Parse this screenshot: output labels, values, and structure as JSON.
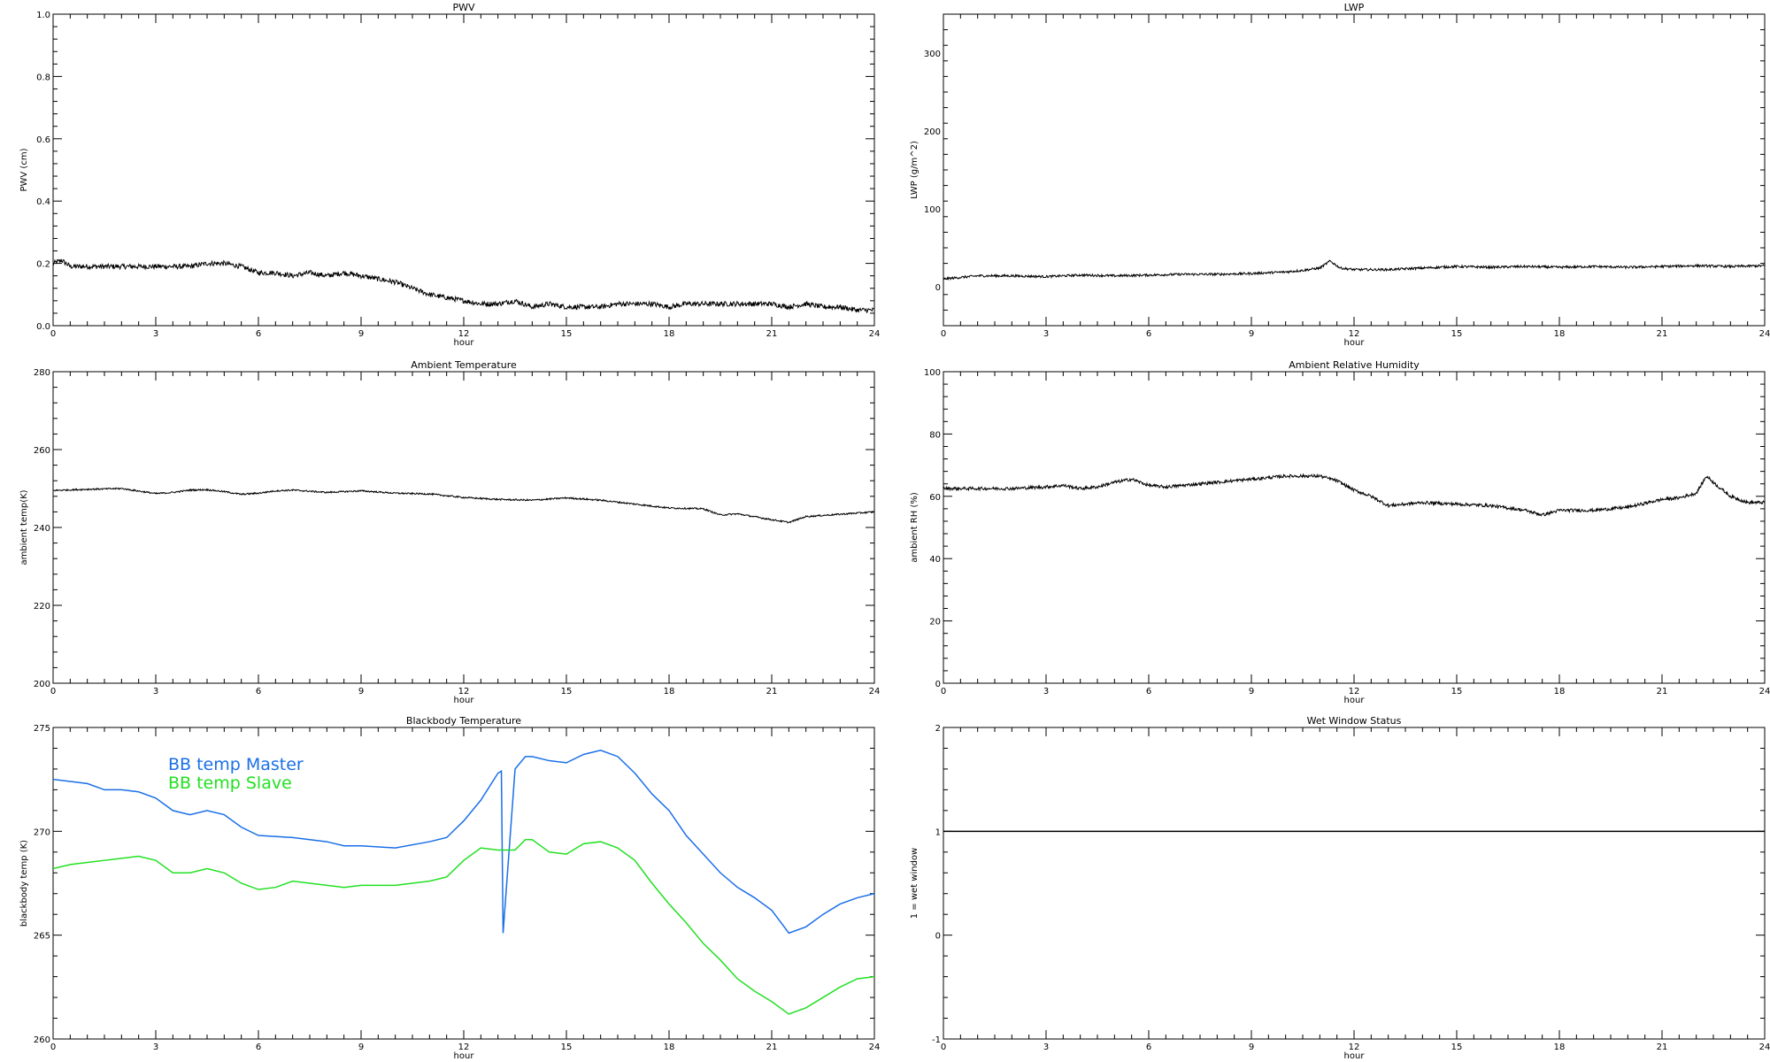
{
  "colors": {
    "axis": "#000000",
    "master": "#1a6fe8",
    "slave": "#22e022",
    "black": "#000000"
  },
  "chart_data": [
    {
      "type": "line",
      "title": "PWV",
      "xlabel": "hour",
      "ylabel": "PWV (cm)",
      "xlim": [
        0,
        24
      ],
      "ylim": [
        0,
        1
      ],
      "xticks": [
        0,
        3,
        6,
        9,
        12,
        15,
        18,
        21,
        24
      ],
      "xtick_labels": [
        "0",
        "3",
        "6",
        "9",
        "12",
        "15",
        "18",
        "21",
        "24"
      ],
      "yticks": [
        0,
        0.2,
        0.4,
        0.6,
        0.8,
        1.0
      ],
      "ytick_labels": [
        "0.0",
        "0.2",
        "0.4",
        "0.6",
        "0.8",
        "1.0"
      ],
      "series": [
        {
          "x": [
            0,
            0.25,
            0.5,
            1,
            2,
            3,
            4,
            4.5,
            5,
            5.5,
            6,
            6.5,
            7,
            7.5,
            8,
            8.5,
            9,
            9.5,
            10,
            10.5,
            11,
            11.5,
            12,
            12.5,
            13,
            13.5,
            14,
            14.5,
            15,
            15.5,
            16,
            16.5,
            17,
            17.5,
            18,
            18.5,
            19,
            19.5,
            20,
            20.5,
            21,
            21.5,
            22,
            22.5,
            23,
            23.5,
            24
          ],
          "y": [
            0.2,
            0.21,
            0.19,
            0.19,
            0.19,
            0.19,
            0.19,
            0.2,
            0.2,
            0.19,
            0.17,
            0.17,
            0.16,
            0.17,
            0.16,
            0.17,
            0.16,
            0.15,
            0.14,
            0.12,
            0.1,
            0.09,
            0.08,
            0.07,
            0.07,
            0.08,
            0.06,
            0.07,
            0.06,
            0.06,
            0.06,
            0.07,
            0.07,
            0.07,
            0.06,
            0.07,
            0.07,
            0.07,
            0.07,
            0.07,
            0.07,
            0.06,
            0.07,
            0.06,
            0.06,
            0.05,
            0.05
          ],
          "noise": 0.008,
          "color": "#000000"
        }
      ]
    },
    {
      "type": "line",
      "title": "LWP",
      "xlabel": "hour",
      "ylabel": "LWP (g/m^2)",
      "xlim": [
        0,
        24
      ],
      "ylim": [
        -50,
        350
      ],
      "xticks": [
        0,
        3,
        6,
        9,
        12,
        15,
        18,
        21,
        24
      ],
      "xtick_labels": [
        "0",
        "3",
        "6",
        "9",
        "12",
        "15",
        "18",
        "21",
        "24"
      ],
      "yticks": [
        0,
        100,
        200,
        300
      ],
      "ytick_labels": [
        "0",
        "100",
        "200",
        "300"
      ],
      "series": [
        {
          "x": [
            0,
            1,
            2,
            3,
            4,
            5,
            6,
            7,
            8,
            9,
            10,
            10.5,
            11,
            11.3,
            11.6,
            12,
            13,
            14,
            15,
            16,
            17,
            18,
            19,
            20,
            21,
            22,
            23,
            24
          ],
          "y": [
            10,
            14,
            14,
            13,
            15,
            14,
            15,
            16,
            16,
            17,
            19,
            21,
            24,
            33,
            24,
            22,
            22,
            24,
            26,
            25,
            26,
            25,
            26,
            25,
            26,
            27,
            26,
            27
          ],
          "noise": 1.5,
          "color": "#000000"
        }
      ]
    },
    {
      "type": "line",
      "title": "Ambient Temperature",
      "xlabel": "hour",
      "ylabel": "ambient temp(K)",
      "xlim": [
        0,
        24
      ],
      "ylim": [
        200,
        280
      ],
      "xticks": [
        0,
        3,
        6,
        9,
        12,
        15,
        18,
        21,
        24
      ],
      "xtick_labels": [
        "0",
        "3",
        "6",
        "9",
        "12",
        "15",
        "18",
        "21",
        "24"
      ],
      "yticks": [
        200,
        220,
        240,
        260,
        280
      ],
      "ytick_labels": [
        "200",
        "220",
        "240",
        "260",
        "280"
      ],
      "series": [
        {
          "x": [
            0,
            1,
            2,
            3,
            3.5,
            4,
            4.5,
            5,
            5.5,
            6,
            6.5,
            7,
            8,
            9,
            10,
            11,
            12,
            13,
            14,
            15,
            16,
            17,
            18,
            19,
            19.5,
            20,
            21,
            21.5,
            22,
            23,
            24
          ],
          "y": [
            249.5,
            249.8,
            250,
            248.7,
            249,
            249.6,
            249.7,
            249.2,
            248.5,
            248.8,
            249.4,
            249.6,
            249,
            249.4,
            248.8,
            248.6,
            247.7,
            247.2,
            247,
            247.6,
            247,
            246,
            245,
            244.8,
            243.2,
            243.5,
            242,
            241.3,
            242.8,
            243.4,
            244
          ],
          "noise": 0.2,
          "color": "#000000"
        }
      ]
    },
    {
      "type": "line",
      "title": "Ambient Relative Humidity",
      "xlabel": "hour",
      "ylabel": "ambient RH (%)",
      "xlim": [
        0,
        24
      ],
      "ylim": [
        0,
        100
      ],
      "xticks": [
        0,
        3,
        6,
        9,
        12,
        15,
        18,
        21,
        24
      ],
      "xtick_labels": [
        "0",
        "3",
        "6",
        "9",
        "12",
        "15",
        "18",
        "21",
        "24"
      ],
      "yticks": [
        0,
        20,
        40,
        60,
        80,
        100
      ],
      "ytick_labels": [
        "0",
        "20",
        "40",
        "60",
        "80",
        "100"
      ],
      "series": [
        {
          "x": [
            0,
            1,
            2,
            3,
            3.5,
            4,
            4.5,
            5,
            5.5,
            6,
            6.5,
            7,
            8,
            9,
            10,
            11,
            11.5,
            12,
            12.5,
            13,
            14,
            15,
            16,
            17,
            17.5,
            18,
            19,
            20,
            21,
            21.5,
            22,
            22.3,
            22.6,
            23,
            23.5,
            24
          ],
          "y": [
            62.5,
            62.5,
            62.5,
            63,
            63.5,
            62.5,
            63,
            64.5,
            65.5,
            63.5,
            63,
            63.5,
            64.5,
            65.5,
            66.5,
            66.5,
            65,
            62,
            60,
            57,
            58,
            57.5,
            57,
            55.5,
            54,
            55.5,
            55.5,
            56.5,
            59,
            59.5,
            61,
            66.5,
            63.5,
            60,
            58,
            58
          ],
          "noise": 0.5,
          "color": "#000000"
        }
      ]
    },
    {
      "type": "line",
      "title": "Blackbody Temperature",
      "xlabel": "hour",
      "ylabel": "blackbody temp (K)",
      "xlim": [
        0,
        24
      ],
      "ylim": [
        260,
        275
      ],
      "xticks": [
        0,
        3,
        6,
        9,
        12,
        15,
        18,
        21,
        24
      ],
      "xtick_labels": [
        "0",
        "3",
        "6",
        "9",
        "12",
        "15",
        "18",
        "21",
        "24"
      ],
      "yticks": [
        260,
        265,
        270,
        275
      ],
      "ytick_labels": [
        "260",
        "265",
        "270",
        "275"
      ],
      "legend": [
        "BB temp Master",
        "BB temp Slave"
      ],
      "series": [
        {
          "name": "BB temp Master",
          "x": [
            0,
            0.5,
            1,
            1.5,
            2,
            2.5,
            3,
            3.5,
            4,
            4.5,
            5,
            5.5,
            6,
            7,
            8,
            8.5,
            9,
            10,
            11,
            11.5,
            12,
            12.5,
            13,
            13.1,
            13.15,
            13.5,
            13.8,
            14,
            14.5,
            15,
            15.5,
            16,
            16.5,
            17,
            17.5,
            18,
            18.5,
            19,
            19.5,
            20,
            20.5,
            21,
            21.5,
            22,
            22.5,
            23,
            23.5,
            24
          ],
          "y": [
            272.5,
            272.4,
            272.3,
            272.0,
            272.0,
            271.9,
            271.6,
            271.0,
            270.8,
            271.0,
            270.8,
            270.2,
            269.8,
            269.7,
            269.5,
            269.3,
            269.3,
            269.2,
            269.5,
            269.7,
            270.5,
            271.5,
            272.8,
            272.9,
            265.1,
            273.0,
            273.6,
            273.6,
            273.4,
            273.3,
            273.7,
            273.9,
            273.6,
            272.8,
            271.8,
            271.0,
            269.8,
            268.9,
            268.0,
            267.3,
            266.8,
            266.2,
            265.1,
            265.4,
            266.0,
            266.5,
            266.8,
            267.0
          ],
          "noise": 0,
          "color": "#1a6fe8"
        },
        {
          "name": "BB temp Slave",
          "x": [
            0,
            0.5,
            1,
            1.5,
            2,
            2.5,
            3,
            3.5,
            4,
            4.5,
            5,
            5.5,
            6,
            6.5,
            7,
            7.5,
            8,
            8.5,
            9,
            10,
            11,
            11.5,
            12,
            12.5,
            13,
            13.5,
            13.8,
            14,
            14.5,
            15,
            15.5,
            16,
            16.5,
            17,
            17.5,
            18,
            18.5,
            19,
            19.5,
            20,
            20.5,
            21,
            21.5,
            22,
            22.5,
            23,
            23.5,
            24
          ],
          "y": [
            268.2,
            268.4,
            268.5,
            268.6,
            268.7,
            268.8,
            268.6,
            268.0,
            268.0,
            268.2,
            268.0,
            267.5,
            267.2,
            267.3,
            267.6,
            267.5,
            267.4,
            267.3,
            267.4,
            267.4,
            267.6,
            267.8,
            268.6,
            269.2,
            269.1,
            269.1,
            269.6,
            269.6,
            269.0,
            268.9,
            269.4,
            269.5,
            269.2,
            268.6,
            267.5,
            266.5,
            265.6,
            264.6,
            263.8,
            262.9,
            262.3,
            261.8,
            261.2,
            261.5,
            262.0,
            262.5,
            262.9,
            263.0
          ],
          "noise": 0,
          "color": "#22e022"
        }
      ]
    },
    {
      "type": "line",
      "title": "Wet Window Status",
      "xlabel": "hour",
      "ylabel": "1 = wet window",
      "xlim": [
        0,
        24
      ],
      "ylim": [
        -1,
        2
      ],
      "xticks": [
        0,
        3,
        6,
        9,
        12,
        15,
        18,
        21,
        24
      ],
      "xtick_labels": [
        "0",
        "3",
        "6",
        "9",
        "12",
        "15",
        "18",
        "21",
        "24"
      ],
      "yticks": [
        -1,
        0,
        1,
        2
      ],
      "ytick_labels": [
        "-1",
        "0",
        "1",
        "2"
      ],
      "series": [
        {
          "x": [
            0,
            24
          ],
          "y": [
            1,
            1
          ],
          "noise": 0,
          "color": "#000000"
        }
      ]
    }
  ]
}
